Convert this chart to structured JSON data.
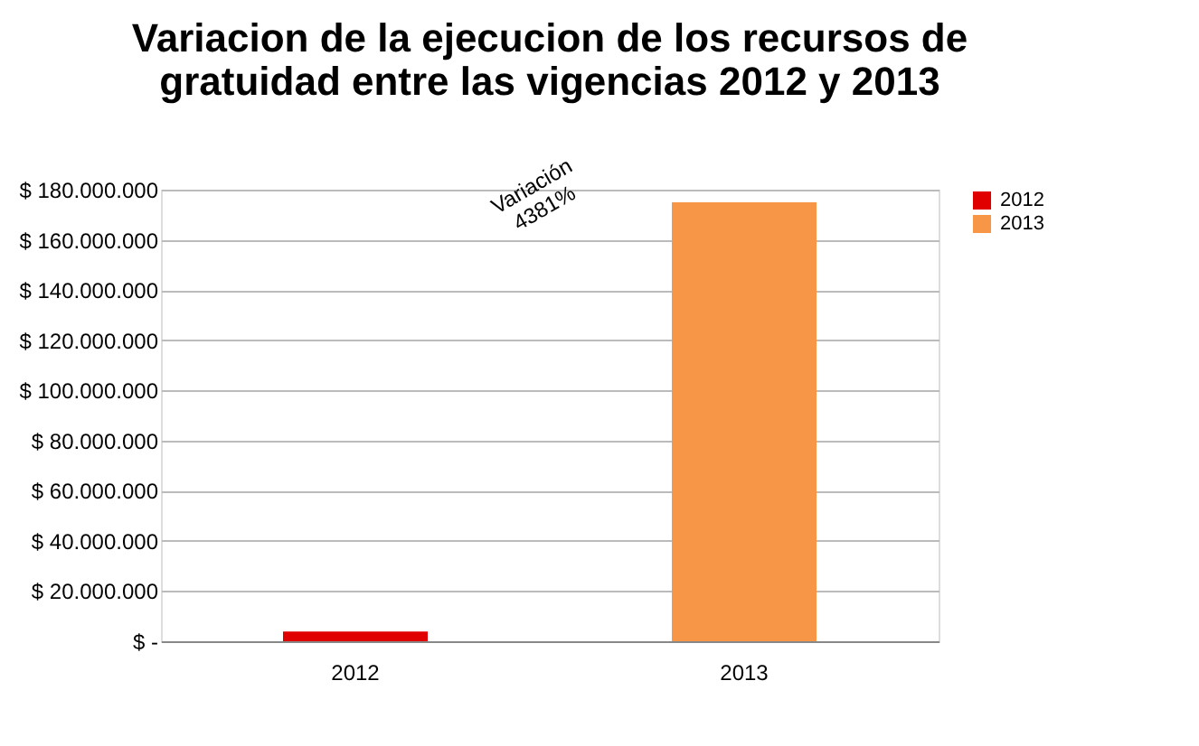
{
  "chart_data": {
    "type": "bar",
    "title": [
      "Variacion de la ejecucion  de los recursos de",
      "gratuidad  entre las vigencias 2012 y 2013"
    ],
    "categories": [
      "2012",
      "2013"
    ],
    "series": [
      {
        "name": "2012",
        "color": "#e00000",
        "values": [
          3900000,
          null
        ]
      },
      {
        "name": "2013",
        "color": "#f79646",
        "values": [
          null,
          175000000
        ]
      }
    ],
    "ylim": [
      0,
      180000000
    ],
    "yticks": [
      {
        "value": 0,
        "label": "$ -"
      },
      {
        "value": 20000000,
        "label": "$ 20.000.000"
      },
      {
        "value": 40000000,
        "label": "$ 40.000.000"
      },
      {
        "value": 60000000,
        "label": "$ 60.000.000"
      },
      {
        "value": 80000000,
        "label": "$ 80.000.000"
      },
      {
        "value": 100000000,
        "label": "$ 100.000.000"
      },
      {
        "value": 120000000,
        "label": "$ 120.000.000"
      },
      {
        "value": 140000000,
        "label": "$ 140.000.000"
      },
      {
        "value": 160000000,
        "label": "$ 160.000.000"
      },
      {
        "value": 180000000,
        "label": "$ 180.000.000"
      }
    ],
    "grid": "y",
    "legend": "right",
    "annotations": [
      "Variación\n4381%"
    ]
  }
}
